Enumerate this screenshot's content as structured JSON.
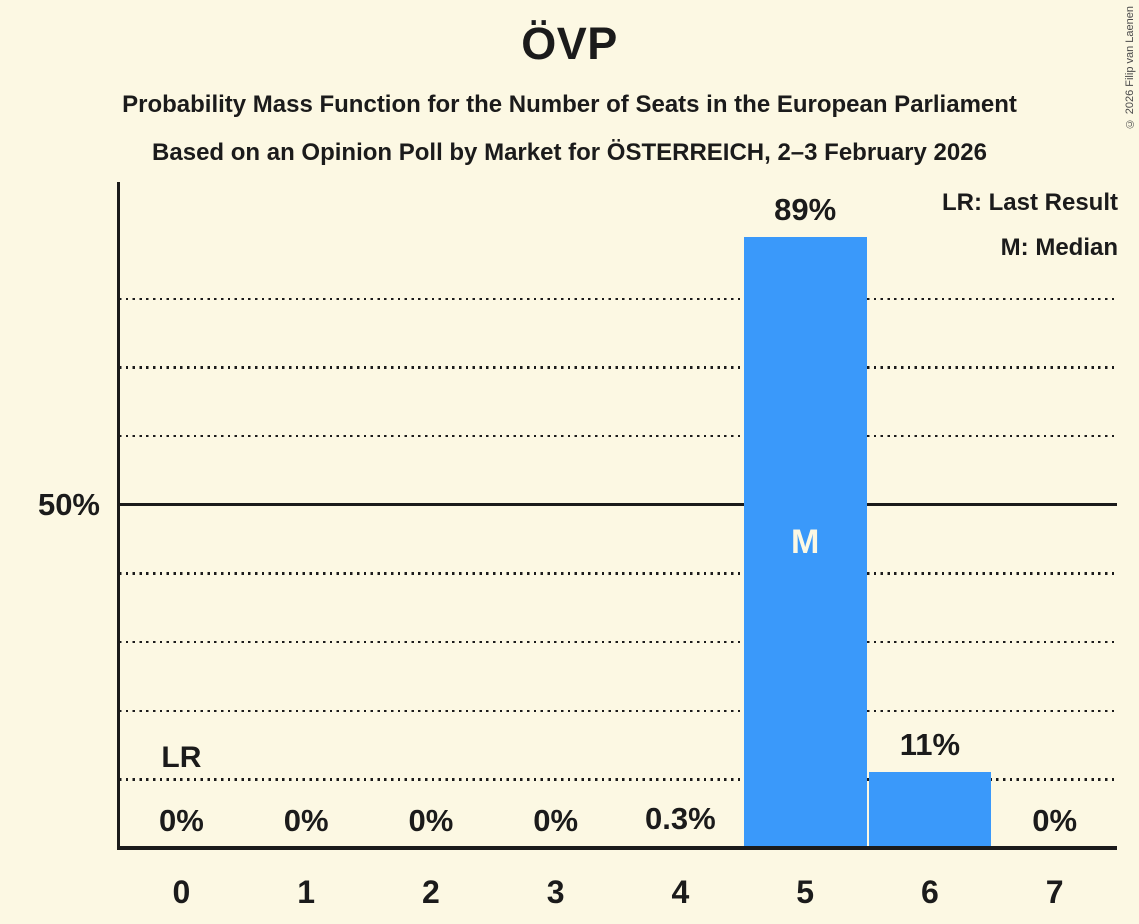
{
  "title": "ÖVP",
  "subtitle1": "Probability Mass Function for the Number of Seats in the European Parliament",
  "subtitle2": "Based on an Opinion Poll by Market for ÖSTERREICH, 2–3 February 2026",
  "copyright": "© 2026 Filip van Laenen",
  "legend": {
    "lr": "LR: Last Result",
    "m": "M: Median"
  },
  "y_axis": {
    "tick_label": "50%",
    "tick_value": 50
  },
  "annotations": {
    "last_result_label": "LR",
    "last_result_seats": 0,
    "median_label": "M",
    "median_seats": 5
  },
  "chart_data": {
    "type": "bar",
    "title": "ÖVP — Probability Mass Function for the Number of Seats in the European Parliament",
    "categories": [
      "0",
      "1",
      "2",
      "3",
      "4",
      "5",
      "6",
      "7"
    ],
    "values": [
      0,
      0,
      0,
      0,
      0.3,
      89,
      11,
      0
    ],
    "value_labels": [
      "0%",
      "0%",
      "0%",
      "0%",
      "0.3%",
      "89%",
      "11%",
      "0%"
    ],
    "ylim": [
      0,
      97
    ],
    "gridlines": {
      "interval_pct": 10,
      "dotted_max_pct": 80,
      "solid_pct": 50
    },
    "legend_position": "top-right",
    "median": 5,
    "last_result": 0
  },
  "colors": {
    "background": "#fcf8e3",
    "bar": "#3a99fa",
    "text": "#1b1b1b",
    "bar_label_text": "#fcf8e3"
  }
}
